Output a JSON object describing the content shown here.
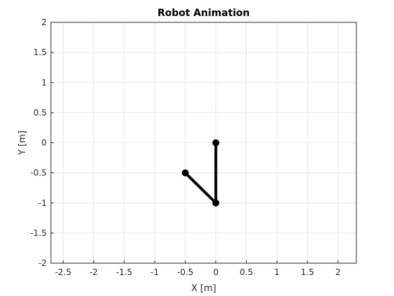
{
  "chart_data": {
    "type": "line",
    "title": "Robot Animation",
    "xlabel": "X [m]",
    "ylabel": "Y [m]",
    "xlim": [
      -2.7,
      2.3
    ],
    "ylim": [
      -2,
      2
    ],
    "xticks": [
      -2.5,
      -2,
      -1.5,
      -1,
      -0.5,
      0,
      0.5,
      1,
      1.5,
      2
    ],
    "yticks": [
      -2,
      -1.5,
      -1,
      -0.5,
      0,
      0.5,
      1,
      1.5,
      2
    ],
    "xtick_labels": [
      "-2.5",
      "-2",
      "-1.5",
      "-1",
      "-0.5",
      "0",
      "0.5",
      "1",
      "1.5",
      "2"
    ],
    "ytick_labels": [
      "-2",
      "-1.5",
      "-1",
      "-0.5",
      "0",
      "0.5",
      "1",
      "1.5",
      "2"
    ],
    "grid": true,
    "series": [
      {
        "x": [
          0,
          0,
          -0.5
        ],
        "y": [
          0,
          -1,
          -0.5
        ],
        "color": "#000000",
        "marker": "circle"
      }
    ]
  }
}
